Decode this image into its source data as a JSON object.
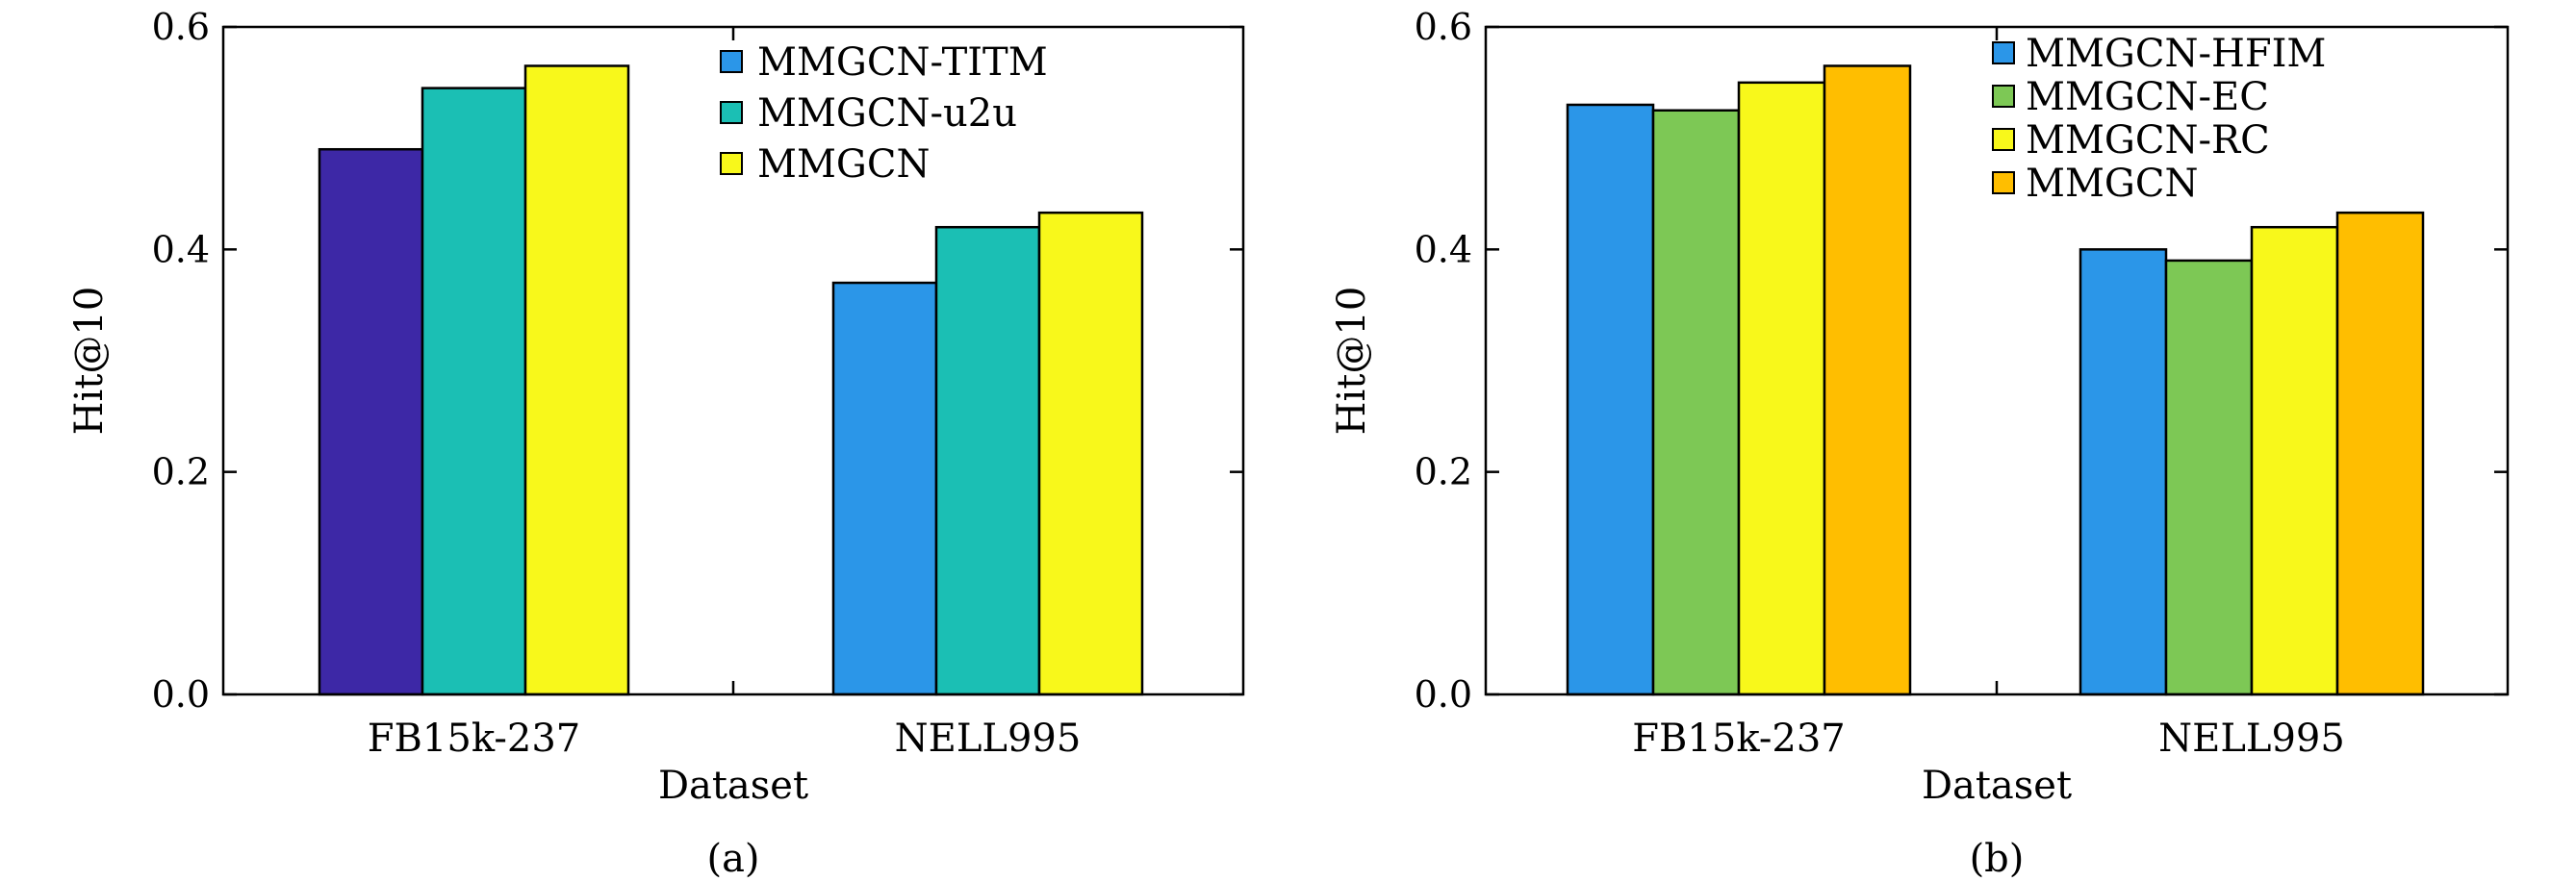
{
  "chart_data": [
    {
      "type": "bar",
      "panel_label": "(a)",
      "xlabel": "Dataset",
      "ylabel": "Hit@10",
      "ylim": [
        0,
        0.6
      ],
      "yticks": [
        "0.0",
        "0.2",
        "0.4",
        "0.6"
      ],
      "grid": false,
      "legend_position": "top-right",
      "categories": [
        "FB15k-237",
        "NELL995"
      ],
      "series": [
        {
          "name": "MMGCN-TITM",
          "legend_color": "#2b96e8",
          "colors": [
            "#3d28a6",
            "#2b96e8"
          ],
          "values": [
            0.49,
            0.37
          ]
        },
        {
          "name": "MMGCN-u2u",
          "legend_color": "#1bbfb4",
          "colors": [
            "#1bbfb4",
            "#1bbfb4"
          ],
          "values": [
            0.545,
            0.42
          ]
        },
        {
          "name": "MMGCN",
          "legend_color": "#f8f81b",
          "colors": [
            "#f8f81b",
            "#f8f81b"
          ],
          "values": [
            0.565,
            0.433
          ]
        }
      ]
    },
    {
      "type": "bar",
      "panel_label": "(b)",
      "xlabel": "Dataset",
      "ylabel": "Hit@10",
      "ylim": [
        0,
        0.6
      ],
      "yticks": [
        "0.0",
        "0.2",
        "0.4",
        "0.6"
      ],
      "grid": false,
      "legend_position": "top-right",
      "categories": [
        "FB15k-237",
        "NELL995"
      ],
      "series": [
        {
          "name": "MMGCN-HFIM",
          "legend_color": "#2b96e8",
          "colors": [
            "#2b96e8",
            "#2b96e8"
          ],
          "values": [
            0.53,
            0.4
          ]
        },
        {
          "name": "MMGCN-EC",
          "legend_color": "#7dc855",
          "colors": [
            "#7dc855",
            "#7dc855"
          ],
          "values": [
            0.525,
            0.39
          ]
        },
        {
          "name": "MMGCN-RC",
          "legend_color": "#f8f81b",
          "colors": [
            "#f8f81b",
            "#f8f81b"
          ],
          "values": [
            0.55,
            0.42
          ]
        },
        {
          "name": "MMGCN",
          "legend_color": "#ffbe00",
          "colors": [
            "#ffbe00",
            "#ffbe00"
          ],
          "values": [
            0.565,
            0.433
          ]
        }
      ]
    }
  ]
}
